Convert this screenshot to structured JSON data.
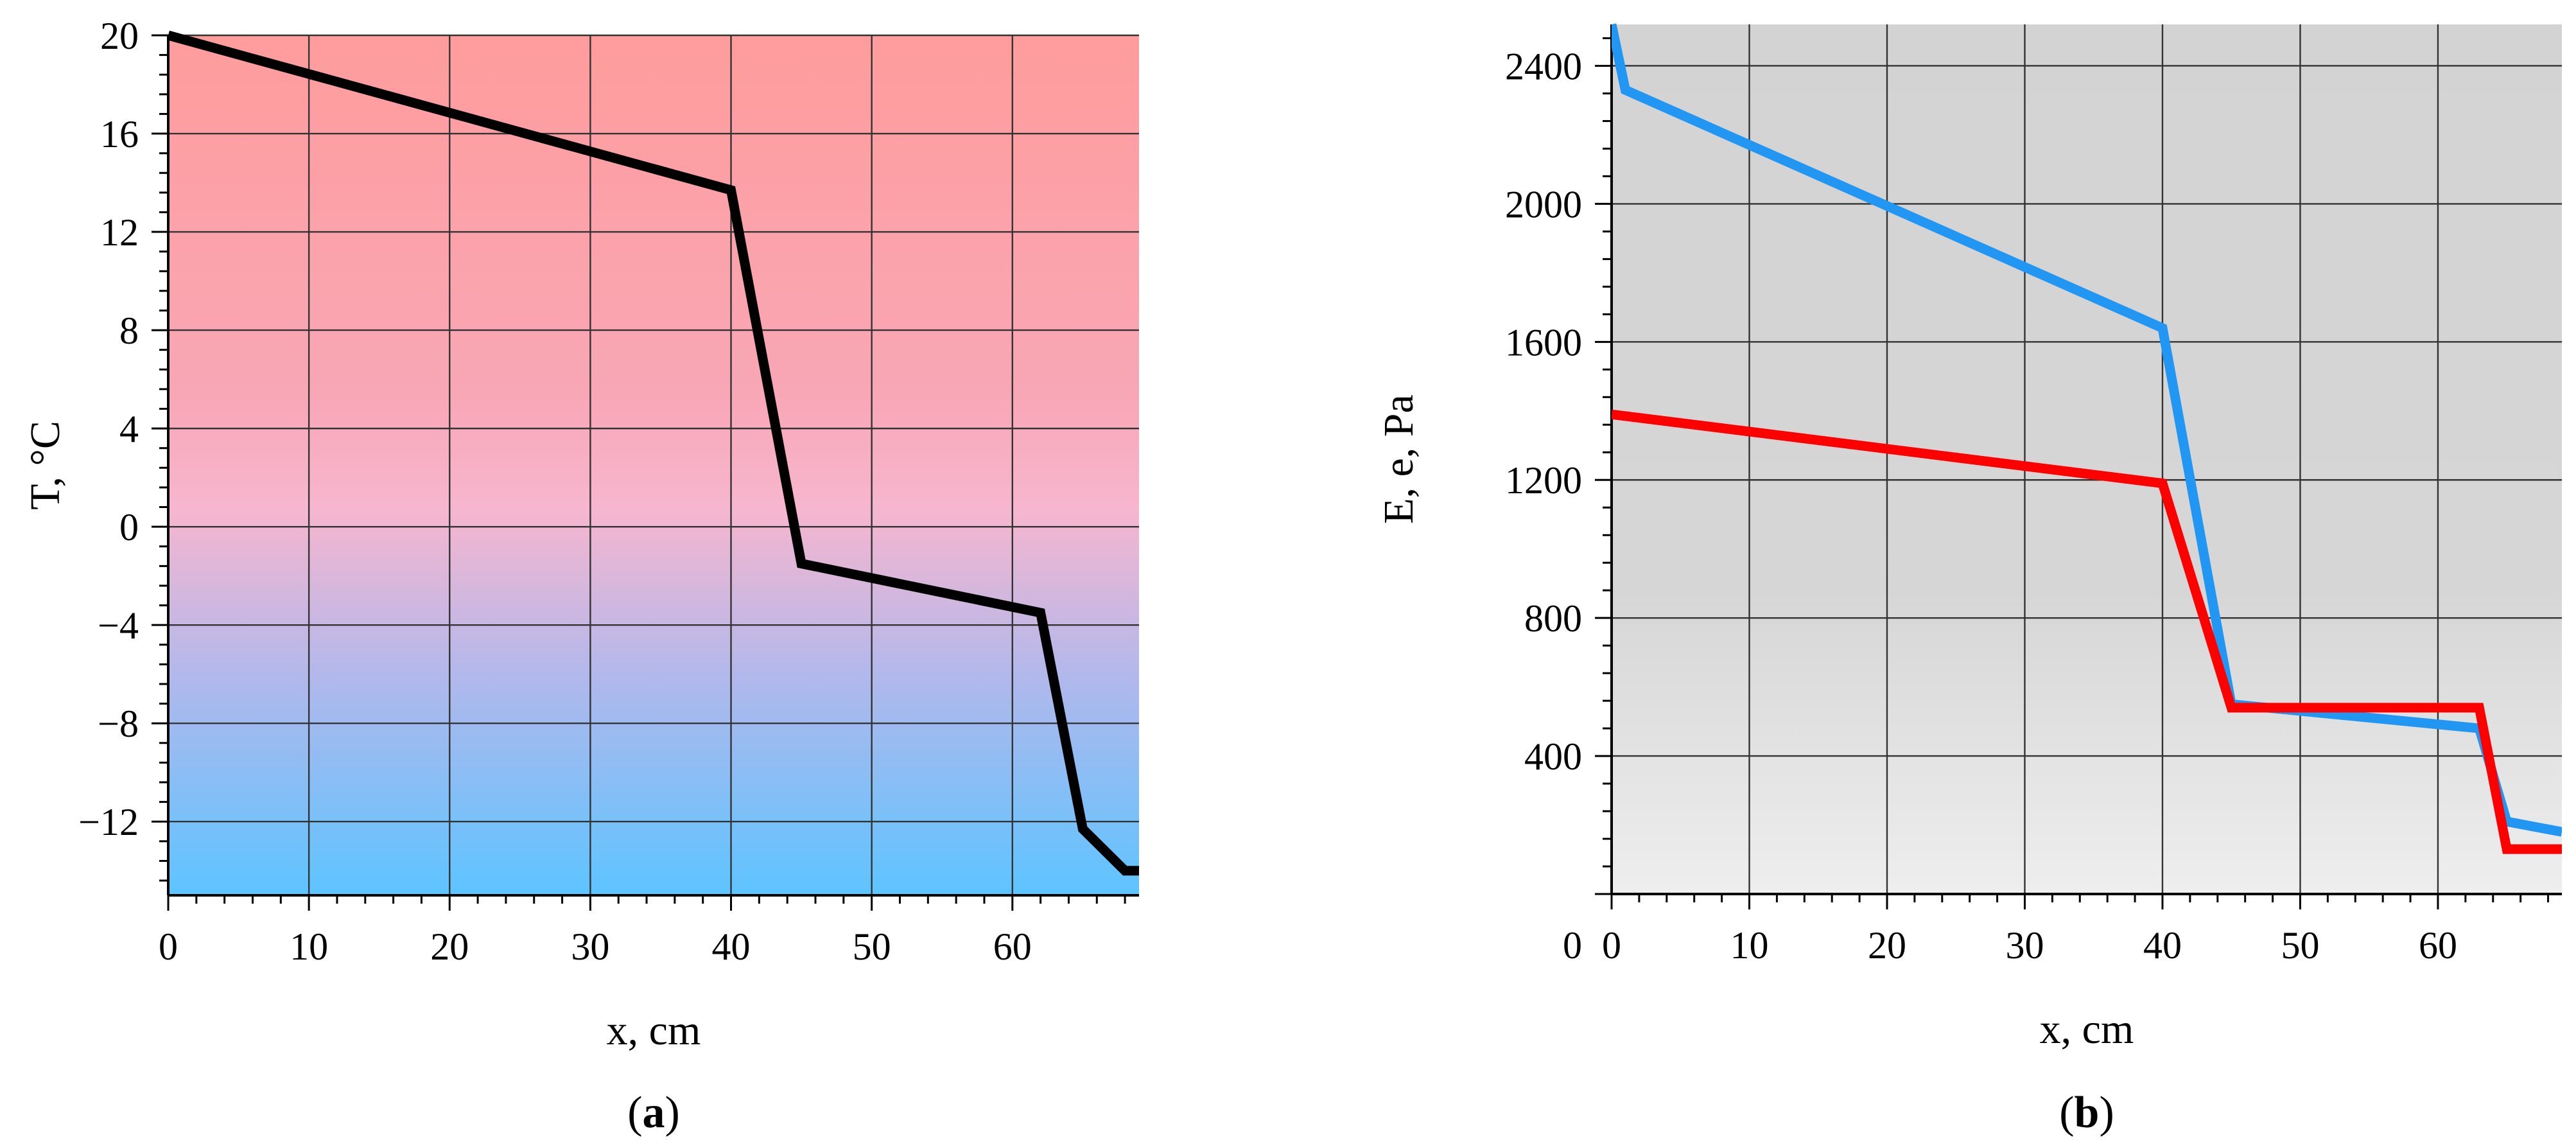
{
  "chart_data": [
    {
      "type": "line",
      "panel_label": "a",
      "xlabel": "x, cm",
      "ylabel": "T, °C",
      "xlim": [
        0,
        69
      ],
      "ylim": [
        -15,
        20
      ],
      "xticks": [
        0,
        10,
        20,
        30,
        40,
        50,
        60
      ],
      "yticks": [
        20,
        16,
        12,
        8,
        4,
        0,
        -4,
        -8,
        -12
      ],
      "ytick_labels": [
        "20",
        "16",
        "12",
        "8",
        "4",
        "0",
        "−4",
        "−8",
        "−12"
      ],
      "grid": true,
      "background_gradient": [
        "#ff9c9c",
        "#f7b6cf",
        "#5dc4ff"
      ],
      "series": [
        {
          "color": "#000000",
          "x": [
            0,
            40,
            45,
            62,
            65,
            68,
            69
          ],
          "y": [
            20,
            13.7,
            -1.5,
            -3.5,
            -12.3,
            -14,
            -14
          ]
        }
      ]
    },
    {
      "type": "line",
      "panel_label": "b",
      "xlabel": "x, cm",
      "ylabel": "E, e, Pa",
      "xlim": [
        0,
        69
      ],
      "ylim": [
        0,
        2520
      ],
      "xticks": [
        0,
        10,
        20,
        30,
        40,
        50,
        60
      ],
      "yticks": [
        2400,
        2000,
        1600,
        1200,
        800,
        400
      ],
      "grid": true,
      "background_gradient": [
        "#d3d3d3",
        "#eeeeee"
      ],
      "series": [
        {
          "color": "#2196f3",
          "x": [
            0,
            1,
            40,
            45,
            63,
            65,
            69
          ],
          "y": [
            2520,
            2330,
            1640,
            550,
            480,
            210,
            180
          ]
        },
        {
          "color": "#ff0000",
          "x": [
            0,
            40,
            45,
            63,
            65,
            69
          ],
          "y": [
            1390,
            1190,
            540,
            540,
            130,
            130
          ]
        }
      ]
    }
  ]
}
